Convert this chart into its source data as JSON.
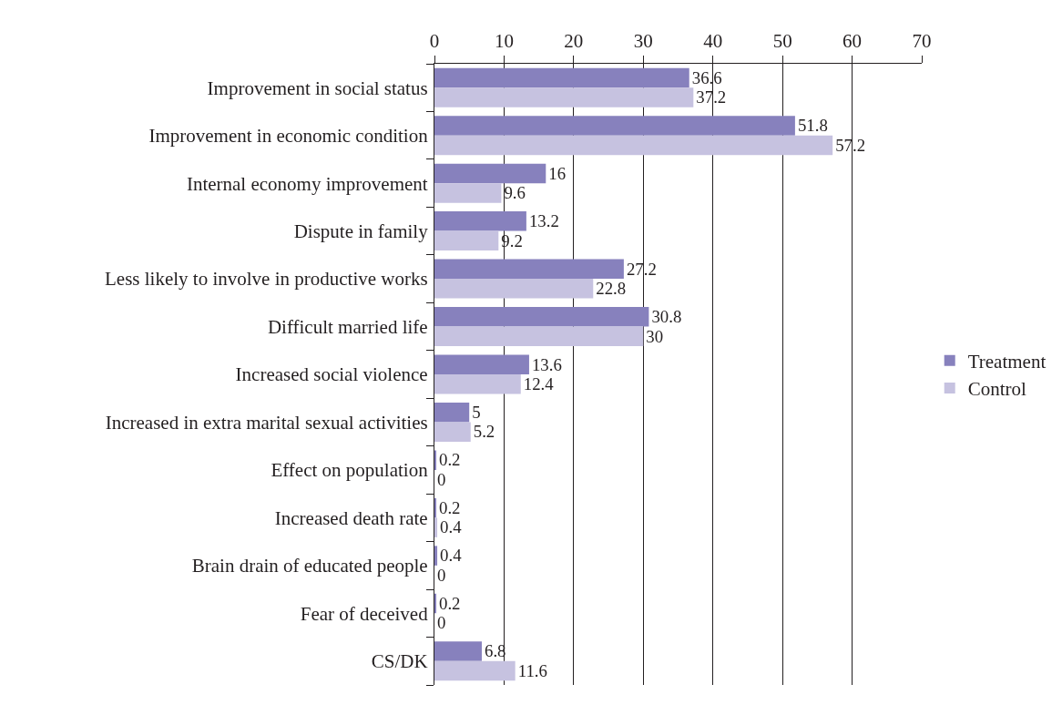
{
  "chart_data": {
    "type": "bar",
    "orientation": "horizontal",
    "categories": [
      "Improvement in social status",
      "Improvement in economic condition",
      "Internal economy improvement",
      "Dispute in family",
      "Less likely to involve in productive works",
      "Difficult married life",
      "Increased social violence",
      "Increased in extra marital sexual activities",
      "Effect on population",
      "Increased death rate",
      "Brain drain of educated people",
      "Fear of deceived",
      "CS/DK"
    ],
    "series": [
      {
        "name": "Treatment",
        "color": "#8781bd",
        "values": [
          36.6,
          51.8,
          16,
          13.2,
          27.2,
          30.8,
          13.6,
          5,
          0.2,
          0.2,
          0.4,
          0.2,
          6.8
        ]
      },
      {
        "name": "Control",
        "color": "#c6c2e0",
        "values": [
          37.2,
          57.2,
          9.6,
          9.2,
          22.8,
          30,
          12.4,
          5.2,
          0,
          0.4,
          0,
          0,
          11.6
        ]
      }
    ],
    "xlim": [
      0,
      70
    ],
    "xticks": [
      0,
      10,
      20,
      30,
      40,
      50,
      60,
      70
    ],
    "grid": "x",
    "legend": "right",
    "data_labels": true
  }
}
